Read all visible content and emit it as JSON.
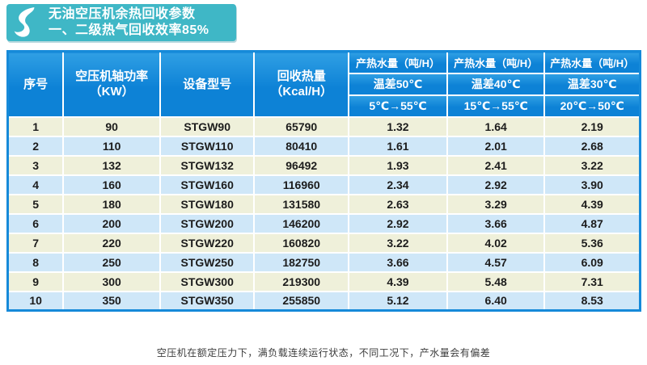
{
  "badge": {
    "title_line1": "无油空压机余热回收参数",
    "title_line2": "一、二级热气回收效率85%",
    "logo_icon": "s-swoosh-logo",
    "bg_color": "#3fb7c6"
  },
  "table": {
    "header": {
      "bg_color": "#0d82d6",
      "col_serial": "序号",
      "col_power_line1": "空压机轴功率",
      "col_power_line2": "（KW）",
      "col_model": "设备型号",
      "col_heat_line1": "回收热量",
      "col_heat_line2": "（Kcal/H）",
      "water_groups": [
        {
          "title": "产热水量（吨/H）",
          "diff": "温差50℃",
          "range": "5℃→55℃"
        },
        {
          "title": "产热水量（吨/H）",
          "diff": "温差40℃",
          "range": "15℃→55℃"
        },
        {
          "title": "产热水量（吨/H）",
          "diff": "温差30℃",
          "range": "20℃→50℃"
        }
      ]
    },
    "row_colors": {
      "odd": "#eff0da",
      "even": "#cfe7f8"
    },
    "rows": [
      [
        "1",
        "90",
        "STGW90",
        "65790",
        "1.32",
        "1.64",
        "2.19"
      ],
      [
        "2",
        "110",
        "STGW110",
        "80410",
        "1.61",
        "2.01",
        "2.68"
      ],
      [
        "3",
        "132",
        "STGW132",
        "96492",
        "1.93",
        "2.41",
        "3.22"
      ],
      [
        "4",
        "160",
        "STGW160",
        "116960",
        "2.34",
        "2.92",
        "3.90"
      ],
      [
        "5",
        "180",
        "STGW180",
        "131580",
        "2.63",
        "3.29",
        "4.39"
      ],
      [
        "6",
        "200",
        "STGW200",
        "146200",
        "2.92",
        "3.66",
        "4.87"
      ],
      [
        "7",
        "220",
        "STGW220",
        "160820",
        "3.22",
        "4.02",
        "5.36"
      ],
      [
        "8",
        "250",
        "STGW250",
        "182750",
        "3.66",
        "4.57",
        "6.09"
      ],
      [
        "9",
        "300",
        "STGW300",
        "219300",
        "4.39",
        "5.48",
        "7.31"
      ],
      [
        "10",
        "350",
        "STGW350",
        "255850",
        "5.12",
        "6.40",
        "8.53"
      ]
    ]
  },
  "footnote": "空压机在额定压力下，满负载连续运行状态，不同工况下，产水量会有偏差"
}
